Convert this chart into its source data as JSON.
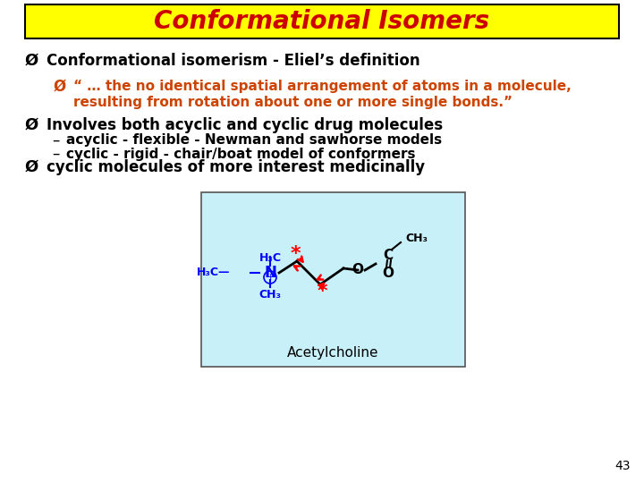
{
  "title": "Conformational Isomers",
  "title_color": "#CC0000",
  "title_bg": "#FFFF00",
  "title_border": "#000000",
  "bullet1": "Conformational isomerism - Eliel’s definition",
  "bullet2_line1": "“ … the no identical spatial arrangement of atoms in a molecule,",
  "bullet2_line2": "resulting from rotation about one or more single bonds.”",
  "bullet3": "Involves both acyclic and cyclic drug molecules",
  "sub1": "acyclic - flexible - Newman and sawhorse models",
  "sub2": "cyclic - rigid - chair/boat model of conformers",
  "bullet4": "cyclic molecules of more interest medicinally",
  "page_num": "43",
  "bg_color": "#FFFFFF",
  "black_text": "#000000",
  "orange_text": "#CC4400",
  "image_bg": "#C8F0F8"
}
